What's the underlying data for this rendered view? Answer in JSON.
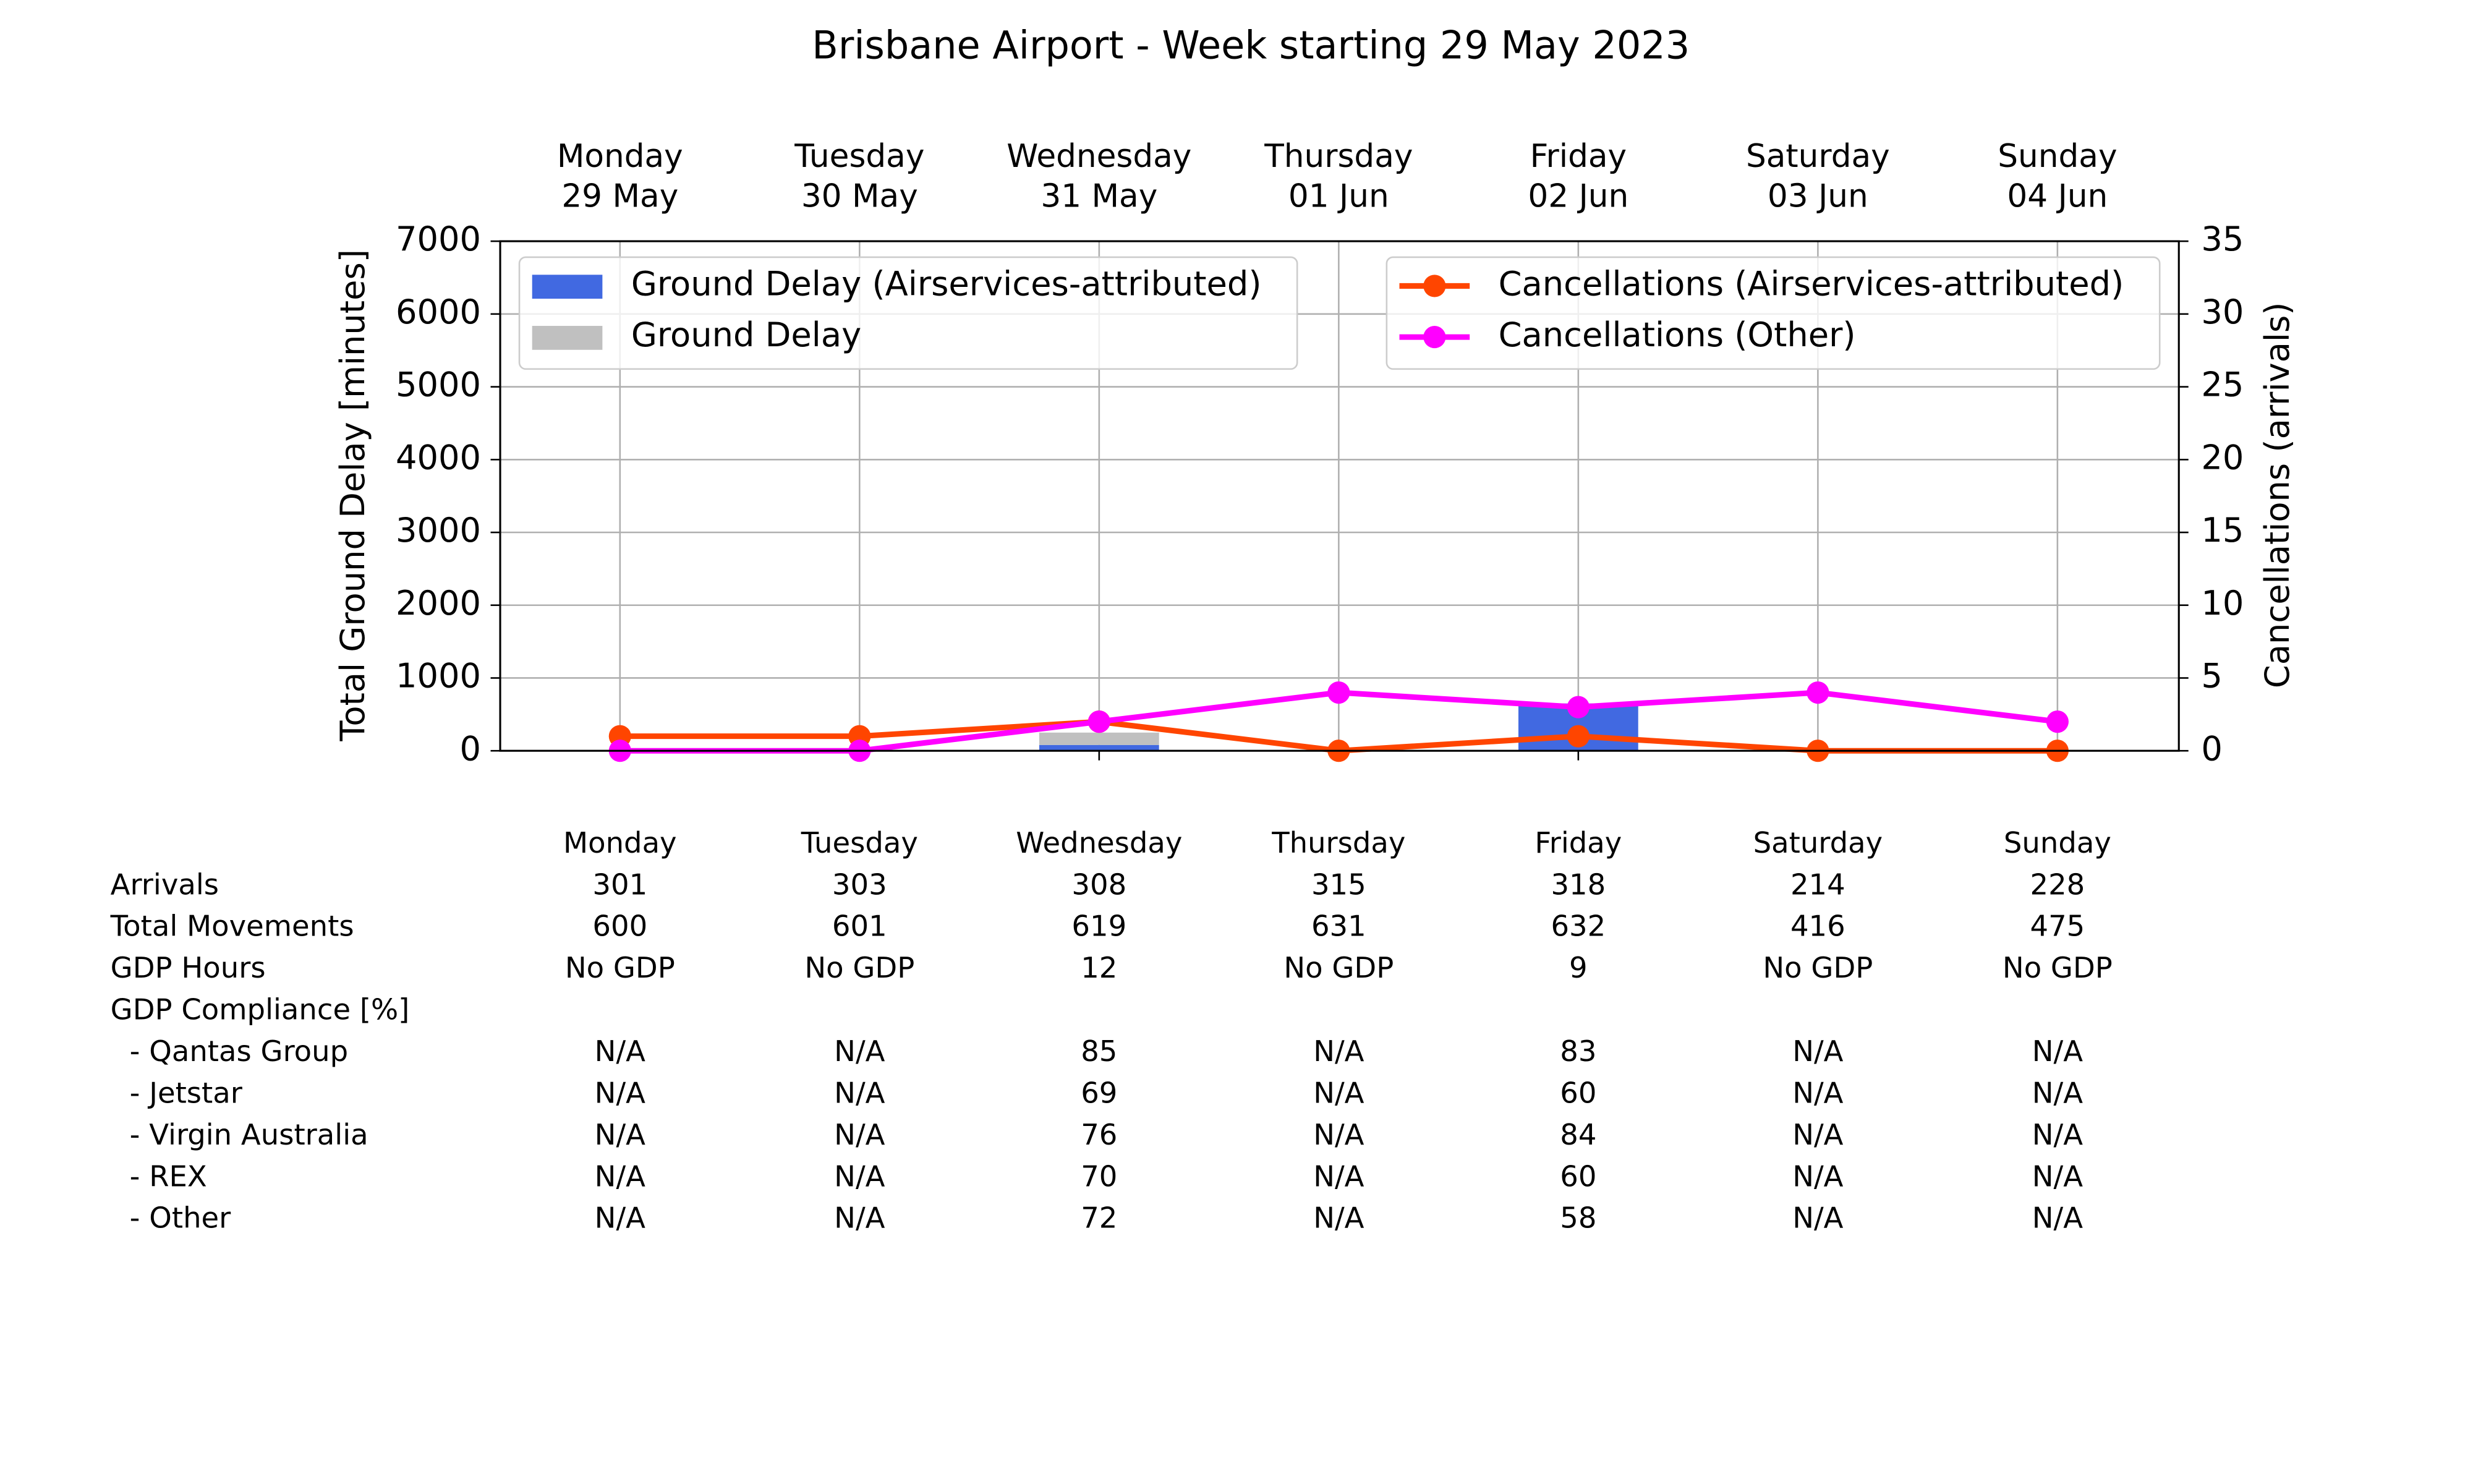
{
  "chart_data": {
    "type": "bar-line",
    "title": "Brisbane Airport - Week starting 29 May 2023",
    "categories": [
      "Monday",
      "Tuesday",
      "Wednesday",
      "Thursday",
      "Friday",
      "Saturday",
      "Sunday"
    ],
    "dates": [
      "29 May",
      "30 May",
      "31 May",
      "01 Jun",
      "02 Jun",
      "03 Jun",
      "04 Jun"
    ],
    "ylabel": "Total Ground Delay [minutes]",
    "y2label": "Cancellations (arrivals)",
    "ylim": [
      0,
      7000
    ],
    "yticks": [
      0,
      1000,
      2000,
      3000,
      4000,
      5000,
      6000,
      7000
    ],
    "y2lim": [
      0,
      35
    ],
    "y2ticks": [
      0,
      5,
      10,
      15,
      20,
      25,
      30,
      35
    ],
    "grid": true,
    "bar_series": [
      {
        "name": "Ground Delay (Airservices-attributed)",
        "color": "#4169e1",
        "values": [
          0,
          0,
          80,
          0,
          650,
          0,
          0
        ]
      },
      {
        "name": "Ground Delay",
        "color": "#c0c0c0",
        "values": [
          0,
          0,
          170,
          0,
          0,
          0,
          0
        ]
      }
    ],
    "line_series": [
      {
        "name": "Cancellations (Airservices-attributed)",
        "color": "#ff4500",
        "axis": "y2",
        "values": [
          1,
          1,
          2,
          0,
          1,
          0,
          0
        ]
      },
      {
        "name": "Cancellations (Other)",
        "color": "#ff00ff",
        "axis": "y2",
        "values": [
          0,
          0,
          2,
          4,
          3,
          4,
          2
        ]
      }
    ]
  },
  "table": {
    "columns": [
      "Monday",
      "Tuesday",
      "Wednesday",
      "Thursday",
      "Friday",
      "Saturday",
      "Sunday"
    ],
    "rows": [
      [
        "Arrivals",
        301,
        303,
        308,
        315,
        318,
        214,
        228
      ],
      [
        "Total Movements",
        600,
        601,
        619,
        631,
        632,
        416,
        475
      ],
      [
        "GDP Hours",
        "No GDP",
        "No GDP",
        12,
        "No GDP",
        9,
        "No GDP",
        "No GDP"
      ]
    ],
    "gdp_compliance": {
      "label": "GDP Compliance [%]",
      "rows": [
        [
          "- Qantas Group",
          "N/A",
          "N/A",
          85,
          "N/A",
          83,
          "N/A",
          "N/A"
        ],
        [
          "- Jetstar",
          "N/A",
          "N/A",
          69,
          "N/A",
          60,
          "N/A",
          "N/A"
        ],
        [
          "- Virgin Australia",
          "N/A",
          "N/A",
          76,
          "N/A",
          84,
          "N/A",
          "N/A"
        ],
        [
          "- REX",
          "N/A",
          "N/A",
          70,
          "N/A",
          60,
          "N/A",
          "N/A"
        ],
        [
          "- Other",
          "N/A",
          "N/A",
          72,
          "N/A",
          58,
          "N/A",
          "N/A"
        ]
      ]
    }
  }
}
